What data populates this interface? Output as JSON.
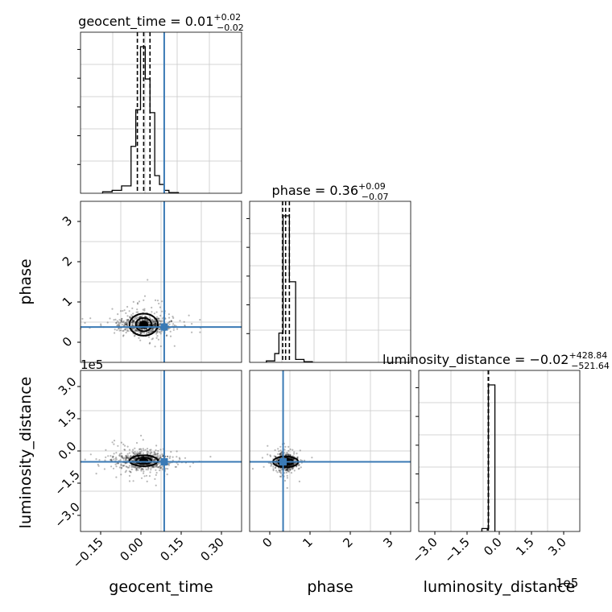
{
  "figure": {
    "accent_color": "#3a7ab5",
    "mark_color": "#000000",
    "grid_color": "#c8c8c8"
  },
  "chart_data": [
    {
      "type": "histogram",
      "panel": "geocent_time-marginal",
      "title_base": "geocent_time = 0.01",
      "title_plus": "+0.02",
      "title_minus": "−0.02",
      "xlim": [
        -0.19,
        0.32
      ],
      "bin_edges": [
        -0.12,
        -0.09,
        -0.06,
        -0.03,
        -0.015,
        0.0,
        0.015,
        0.03,
        0.045,
        0.06,
        0.075,
        0.09,
        0.12
      ],
      "counts": [
        0.01,
        0.02,
        0.05,
        0.32,
        0.57,
        1.0,
        0.78,
        0.55,
        0.12,
        0.06,
        0.02,
        0.005
      ],
      "quantiles": [
        -0.01,
        0.01,
        0.03
      ],
      "truth": 0.075,
      "grid": true
    },
    {
      "type": "histogram",
      "panel": "phase-marginal",
      "title_base": "phase = 0.36",
      "title_plus": "+0.09",
      "title_minus": "−0.07",
      "xlim": [
        -0.5,
        3.35
      ],
      "bin_edges": [
        -0.1,
        0.1,
        0.2,
        0.3,
        0.45,
        0.6,
        0.8,
        1.0
      ],
      "counts": [
        0.01,
        0.06,
        0.2,
        1.0,
        0.55,
        0.02,
        0.005
      ],
      "quantiles": [
        0.29,
        0.36,
        0.45
      ],
      "grid": true
    },
    {
      "type": "histogram",
      "panel": "luminosity_distance-marginal",
      "title_base": "luminosity_distance = −0.02",
      "title_plus": "+428.84",
      "title_minus": "−521.64",
      "xlim": [
        -3.2,
        4.2
      ],
      "x_multiplier": "1e5",
      "bin_edges": [
        -0.3,
        -0.05,
        0.0,
        0.3
      ],
      "counts": [
        0.02,
        0.01,
        1.0
      ],
      "quantiles": [
        -0.005,
        0.0,
        0.005
      ],
      "grid": true
    },
    {
      "type": "scatter",
      "panel": "phase-vs-geocent_time",
      "xlim": [
        -0.19,
        0.32
      ],
      "ylim": [
        -0.6,
        3.5
      ],
      "ylabel": "phase",
      "y_ticks": [
        "0",
        "1",
        "2",
        "3"
      ],
      "center": [
        0.01,
        0.36
      ],
      "spread": [
        0.04,
        0.12
      ],
      "contour_levels": [
        [
          0.045,
          0.28
        ],
        [
          0.025,
          0.17
        ],
        [
          0.012,
          0.08
        ]
      ],
      "truth": [
        0.075,
        0.3
      ],
      "grid": true
    },
    {
      "type": "scatter",
      "panel": "luminosity_distance-vs-geocent_time",
      "xlim": [
        -0.19,
        0.32
      ],
      "ylim": [
        -3.2,
        4.2
      ],
      "ylabel": "luminosity_distance",
      "y_multiplier": "1e5",
      "y_ticks": [
        "−3.0",
        "−1.5",
        "0.0",
        "1.5",
        "3.0"
      ],
      "x_ticks": [
        "−0.15",
        "0.00",
        "0.15",
        "0.30"
      ],
      "xlabel": "geocent_time",
      "center": [
        0.01,
        0.05
      ],
      "spread": [
        0.04,
        0.2
      ],
      "contour_levels": [
        [
          0.045,
          0.25
        ],
        [
          0.025,
          0.15
        ],
        [
          0.012,
          0.08
        ]
      ],
      "truth": [
        0.075,
        0.0
      ],
      "grid": true
    },
    {
      "type": "scatter",
      "panel": "luminosity_distance-vs-phase",
      "xlim": [
        -0.5,
        3.35
      ],
      "ylim": [
        -3.2,
        4.2
      ],
      "x_ticks": [
        "0",
        "1",
        "2",
        "3"
      ],
      "xlabel": "phase",
      "center": [
        0.36,
        0.0
      ],
      "spread": [
        0.12,
        0.18
      ],
      "contour_levels": [
        [
          0.3,
          0.25
        ],
        [
          0.18,
          0.15
        ],
        [
          0.09,
          0.08
        ]
      ],
      "truth": [
        0.3,
        0.0
      ],
      "grid": true
    },
    {
      "type": "axis",
      "panel": "luminosity_distance-x-axis",
      "x_ticks": [
        "−3.0",
        "−1.5",
        "0.0",
        "1.5",
        "3.0"
      ],
      "xlabel": "luminosity_distance",
      "x_multiplier": "1e5"
    }
  ]
}
